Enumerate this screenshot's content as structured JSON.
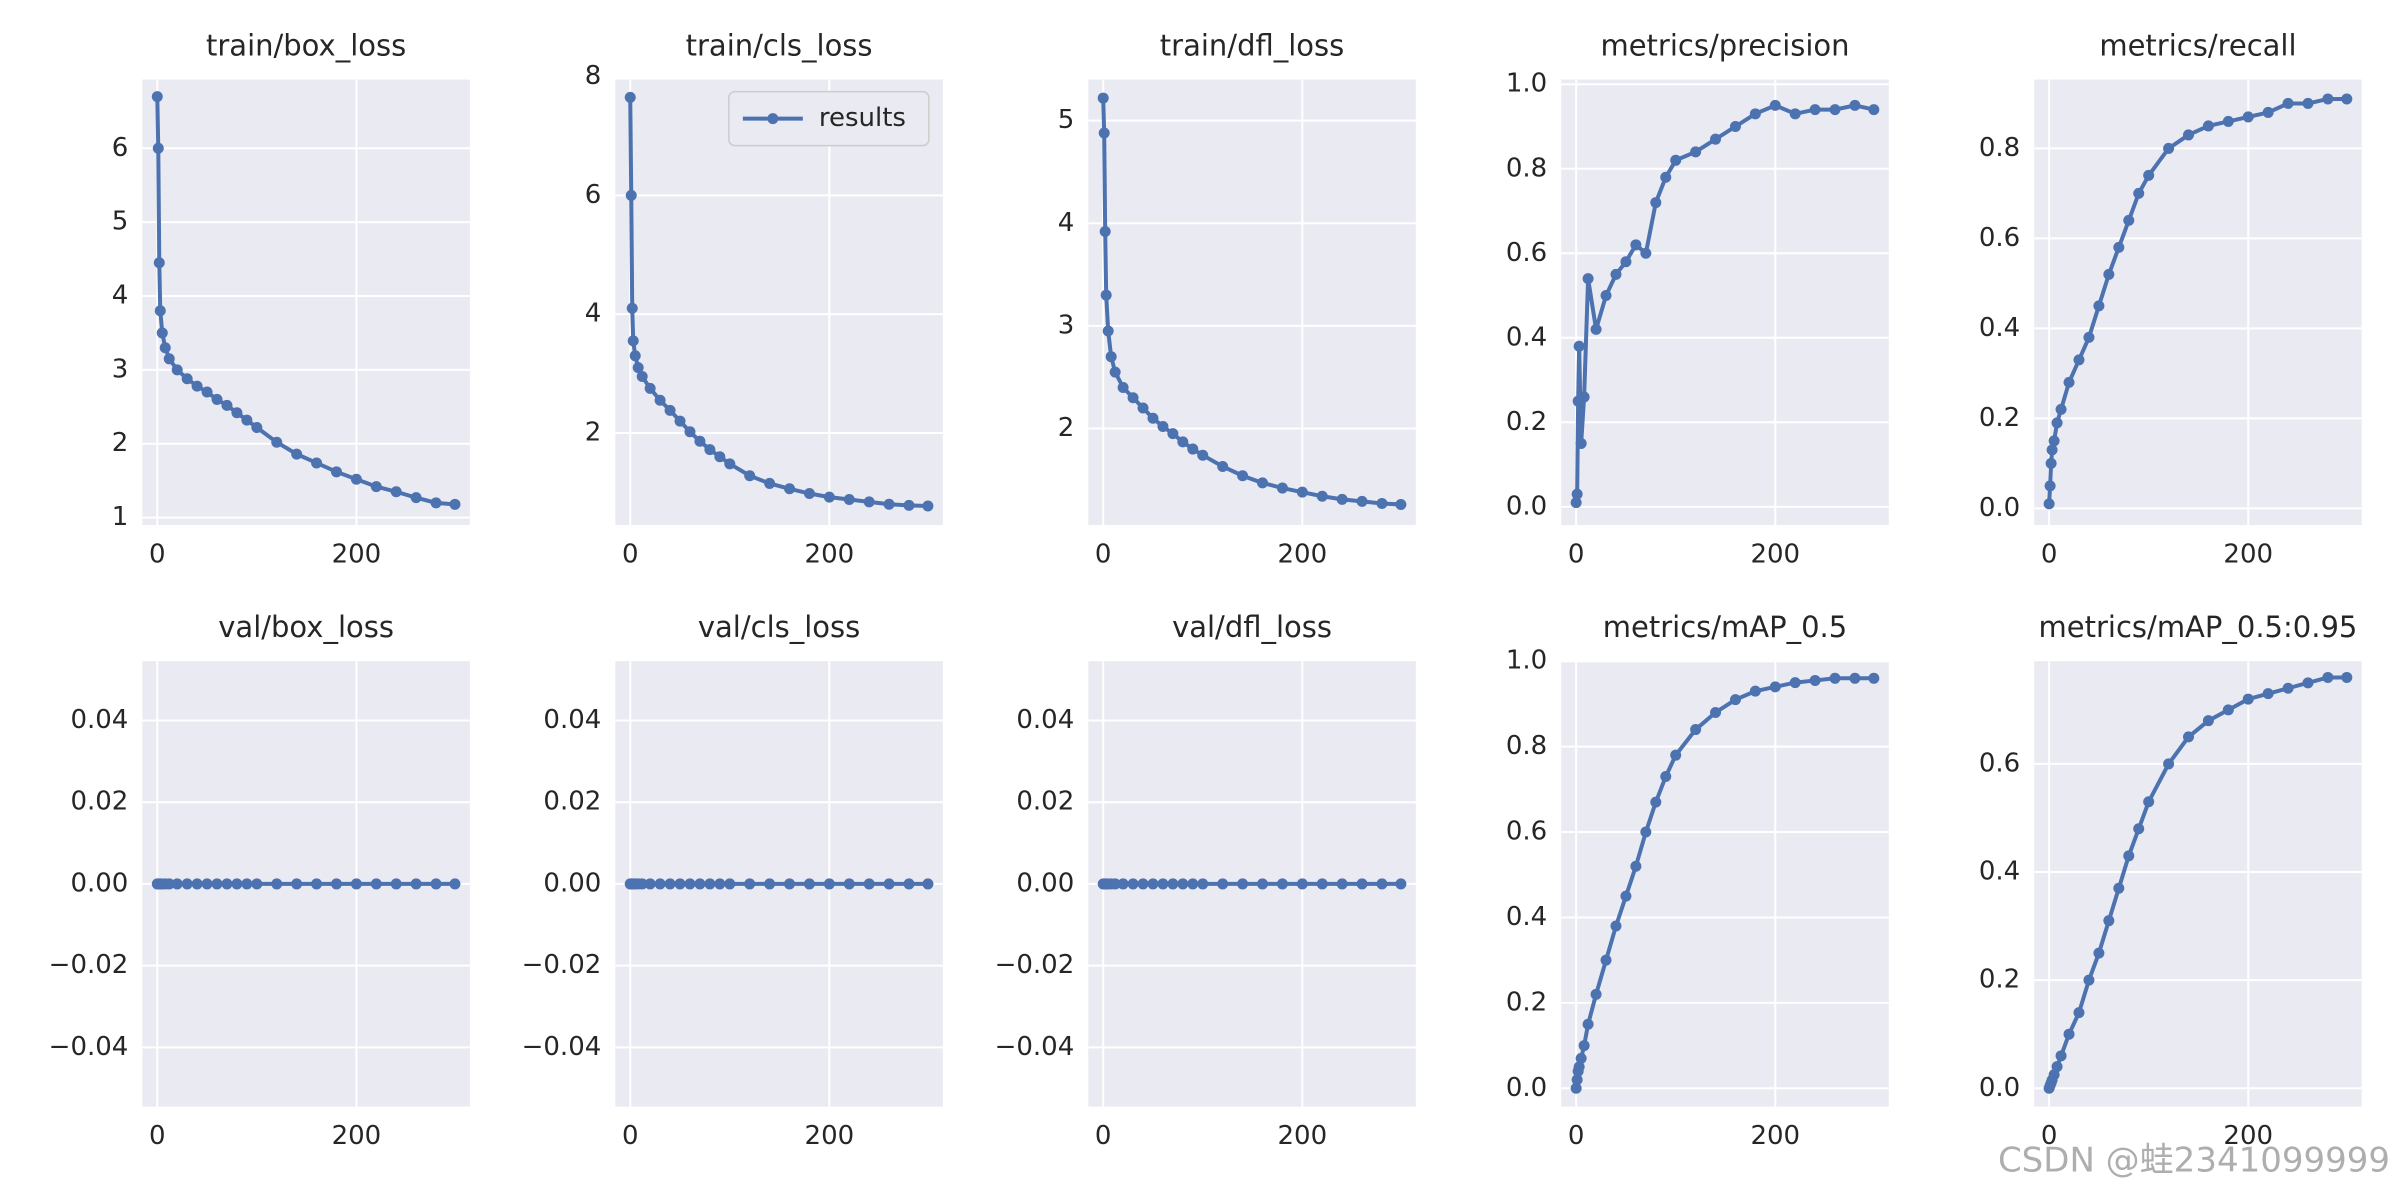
{
  "chart_data": [
    {
      "type": "line",
      "title": "train/box_loss",
      "x": [
        0,
        1,
        2,
        3,
        5,
        8,
        12,
        20,
        30,
        40,
        50,
        60,
        70,
        80,
        90,
        100,
        120,
        140,
        160,
        180,
        200,
        220,
        240,
        260,
        280,
        299
      ],
      "series": [
        {
          "color": "#4c72b0",
          "values": [
            6.7,
            6.0,
            4.45,
            3.8,
            3.5,
            3.3,
            3.15,
            3.0,
            2.88,
            2.78,
            2.7,
            2.6,
            2.52,
            2.42,
            2.32,
            2.22,
            2.02,
            1.86,
            1.74,
            1.62,
            1.52,
            1.42,
            1.35,
            1.27,
            1.2,
            1.18
          ]
        }
      ],
      "xlim": [
        -15,
        314
      ],
      "ylim": [
        0.9,
        6.93
      ],
      "xticks": [
        0,
        200
      ],
      "yticks": [
        1,
        2,
        3,
        4,
        5,
        6
      ],
      "grid": true
    },
    {
      "type": "line",
      "title": "train/cls_loss",
      "x": [
        0,
        1,
        2,
        3,
        5,
        8,
        12,
        20,
        30,
        40,
        50,
        60,
        70,
        80,
        90,
        100,
        120,
        140,
        160,
        180,
        200,
        220,
        240,
        260,
        280,
        299
      ],
      "series": [
        {
          "name": "results",
          "color": "#4c72b0",
          "values": [
            7.65,
            6.0,
            4.1,
            3.55,
            3.3,
            3.1,
            2.95,
            2.75,
            2.55,
            2.38,
            2.2,
            2.02,
            1.86,
            1.72,
            1.6,
            1.48,
            1.28,
            1.15,
            1.06,
            0.98,
            0.92,
            0.88,
            0.84,
            0.8,
            0.78,
            0.77
          ]
        }
      ],
      "xlim": [
        -15,
        314
      ],
      "ylim": [
        0.45,
        7.95
      ],
      "xticks": [
        0,
        200
      ],
      "yticks": [
        2,
        4,
        6,
        8
      ],
      "grid": true,
      "legend": "upper right"
    },
    {
      "type": "line",
      "title": "train/dfl_loss",
      "x": [
        0,
        1,
        2,
        3,
        5,
        8,
        12,
        20,
        30,
        40,
        50,
        60,
        70,
        80,
        90,
        100,
        120,
        140,
        160,
        180,
        200,
        220,
        240,
        260,
        280,
        299
      ],
      "series": [
        {
          "color": "#4c72b0",
          "values": [
            5.22,
            4.88,
            3.92,
            3.3,
            2.95,
            2.7,
            2.55,
            2.4,
            2.3,
            2.2,
            2.1,
            2.02,
            1.95,
            1.87,
            1.8,
            1.74,
            1.63,
            1.54,
            1.47,
            1.42,
            1.38,
            1.34,
            1.31,
            1.29,
            1.27,
            1.26
          ]
        }
      ],
      "xlim": [
        -15,
        314
      ],
      "ylim": [
        1.06,
        5.4
      ],
      "xticks": [
        0,
        200
      ],
      "yticks": [
        2,
        3,
        4,
        5
      ],
      "grid": true
    },
    {
      "type": "line",
      "title": "metrics/precision",
      "x": [
        0,
        1,
        2,
        3,
        5,
        8,
        12,
        20,
        30,
        40,
        50,
        60,
        70,
        80,
        90,
        100,
        120,
        140,
        160,
        180,
        200,
        220,
        240,
        260,
        280,
        299
      ],
      "series": [
        {
          "color": "#4c72b0",
          "values": [
            0.01,
            0.03,
            0.25,
            0.38,
            0.15,
            0.26,
            0.54,
            0.42,
            0.5,
            0.55,
            0.58,
            0.62,
            0.6,
            0.72,
            0.78,
            0.82,
            0.84,
            0.87,
            0.9,
            0.93,
            0.95,
            0.93,
            0.94,
            0.94,
            0.95,
            0.94
          ]
        }
      ],
      "xlim": [
        -15,
        314
      ],
      "ylim": [
        -0.043,
        1.011
      ],
      "xticks": [
        0,
        200
      ],
      "yticks": [
        {
          "value": 0,
          "label": "0.0"
        },
        0.2,
        0.4,
        0.6,
        0.8,
        {
          "value": 1,
          "label": "1.0"
        }
      ],
      "grid": true
    },
    {
      "type": "line",
      "title": "metrics/recall",
      "x": [
        0,
        1,
        2,
        3,
        5,
        8,
        12,
        20,
        30,
        40,
        50,
        60,
        70,
        80,
        90,
        100,
        120,
        140,
        160,
        180,
        200,
        220,
        240,
        260,
        280,
        299
      ],
      "series": [
        {
          "color": "#4c72b0",
          "values": [
            0.01,
            0.05,
            0.1,
            0.13,
            0.15,
            0.19,
            0.22,
            0.28,
            0.33,
            0.38,
            0.45,
            0.52,
            0.58,
            0.64,
            0.7,
            0.74,
            0.8,
            0.83,
            0.85,
            0.86,
            0.87,
            0.88,
            0.9,
            0.9,
            0.91,
            0.91
          ]
        }
      ],
      "xlim": [
        -15,
        314
      ],
      "ylim": [
        -0.037,
        0.953
      ],
      "xticks": [
        0,
        200
      ],
      "yticks": [
        {
          "value": 0,
          "label": "0.0"
        },
        0.2,
        0.4,
        0.6,
        0.8
      ],
      "grid": true
    },
    {
      "type": "line",
      "title": "val/box_loss",
      "x": [
        0,
        1,
        2,
        3,
        5,
        8,
        12,
        20,
        30,
        40,
        50,
        60,
        70,
        80,
        90,
        100,
        120,
        140,
        160,
        180,
        200,
        220,
        240,
        260,
        280,
        299
      ],
      "series": [
        {
          "color": "#4c72b0",
          "values": [
            0,
            0,
            0,
            0,
            0,
            0,
            0,
            0,
            0,
            0,
            0,
            0,
            0,
            0,
            0,
            0,
            0,
            0,
            0,
            0,
            0,
            0,
            0,
            0,
            0,
            0
          ]
        }
      ],
      "xlim": [
        -15,
        314
      ],
      "ylim": [
        -0.0545,
        0.0545
      ],
      "xticks": [
        0,
        200
      ],
      "yticks": [
        {
          "value": -0.04,
          "label": "−0.04"
        },
        {
          "value": -0.02,
          "label": "−0.02"
        },
        {
          "value": 0,
          "label": "0.00"
        },
        0.02,
        0.04
      ],
      "grid": true
    },
    {
      "type": "line",
      "title": "val/cls_loss",
      "x": [
        0,
        1,
        2,
        3,
        5,
        8,
        12,
        20,
        30,
        40,
        50,
        60,
        70,
        80,
        90,
        100,
        120,
        140,
        160,
        180,
        200,
        220,
        240,
        260,
        280,
        299
      ],
      "series": [
        {
          "color": "#4c72b0",
          "values": [
            0,
            0,
            0,
            0,
            0,
            0,
            0,
            0,
            0,
            0,
            0,
            0,
            0,
            0,
            0,
            0,
            0,
            0,
            0,
            0,
            0,
            0,
            0,
            0,
            0,
            0
          ]
        }
      ],
      "xlim": [
        -15,
        314
      ],
      "ylim": [
        -0.0545,
        0.0545
      ],
      "xticks": [
        0,
        200
      ],
      "yticks": [
        {
          "value": -0.04,
          "label": "−0.04"
        },
        {
          "value": -0.02,
          "label": "−0.02"
        },
        {
          "value": 0,
          "label": "0.00"
        },
        0.02,
        0.04
      ],
      "grid": true
    },
    {
      "type": "line",
      "title": "val/dfl_loss",
      "x": [
        0,
        1,
        2,
        3,
        5,
        8,
        12,
        20,
        30,
        40,
        50,
        60,
        70,
        80,
        90,
        100,
        120,
        140,
        160,
        180,
        200,
        220,
        240,
        260,
        280,
        299
      ],
      "series": [
        {
          "color": "#4c72b0",
          "values": [
            0,
            0,
            0,
            0,
            0,
            0,
            0,
            0,
            0,
            0,
            0,
            0,
            0,
            0,
            0,
            0,
            0,
            0,
            0,
            0,
            0,
            0,
            0,
            0,
            0,
            0
          ]
        }
      ],
      "xlim": [
        -15,
        314
      ],
      "ylim": [
        -0.0545,
        0.0545
      ],
      "xticks": [
        0,
        200
      ],
      "yticks": [
        {
          "value": -0.04,
          "label": "−0.04"
        },
        {
          "value": -0.02,
          "label": "−0.02"
        },
        {
          "value": 0,
          "label": "0.00"
        },
        0.02,
        0.04
      ],
      "grid": true
    },
    {
      "type": "line",
      "title": "metrics/mAP_0.5",
      "x": [
        0,
        1,
        2,
        3,
        5,
        8,
        12,
        20,
        30,
        40,
        50,
        60,
        70,
        80,
        90,
        100,
        120,
        140,
        160,
        180,
        200,
        220,
        240,
        260,
        280,
        299
      ],
      "series": [
        {
          "color": "#4c72b0",
          "values": [
            0,
            0.02,
            0.04,
            0.05,
            0.07,
            0.1,
            0.15,
            0.22,
            0.3,
            0.38,
            0.45,
            0.52,
            0.6,
            0.67,
            0.73,
            0.78,
            0.84,
            0.88,
            0.91,
            0.93,
            0.94,
            0.95,
            0.955,
            0.96,
            0.96,
            0.96
          ]
        }
      ],
      "xlim": [
        -15,
        314
      ],
      "ylim": [
        -0.043,
        1.0
      ],
      "xticks": [
        0,
        200
      ],
      "yticks": [
        {
          "value": 0,
          "label": "0.0"
        },
        0.2,
        0.4,
        0.6,
        0.8,
        {
          "value": 1,
          "label": "1.0"
        }
      ],
      "grid": true
    },
    {
      "type": "line",
      "title": "metrics/mAP_0.5:0.95",
      "x": [
        0,
        1,
        2,
        3,
        5,
        8,
        12,
        20,
        30,
        40,
        50,
        60,
        70,
        80,
        90,
        100,
        120,
        140,
        160,
        180,
        200,
        220,
        240,
        260,
        280,
        299
      ],
      "series": [
        {
          "color": "#4c72b0",
          "values": [
            0,
            0.005,
            0.01,
            0.015,
            0.025,
            0.04,
            0.06,
            0.1,
            0.14,
            0.2,
            0.25,
            0.31,
            0.37,
            0.43,
            0.48,
            0.53,
            0.6,
            0.65,
            0.68,
            0.7,
            0.72,
            0.73,
            0.74,
            0.75,
            0.76,
            0.76
          ]
        }
      ],
      "xlim": [
        -15,
        314
      ],
      "ylim": [
        -0.034,
        0.79
      ],
      "xticks": [
        0,
        200
      ],
      "yticks": [
        {
          "value": 0,
          "label": "0.0"
        },
        0.2,
        0.4,
        0.6
      ],
      "grid": true
    }
  ],
  "watermark": "CSDN @蛙2341099999"
}
